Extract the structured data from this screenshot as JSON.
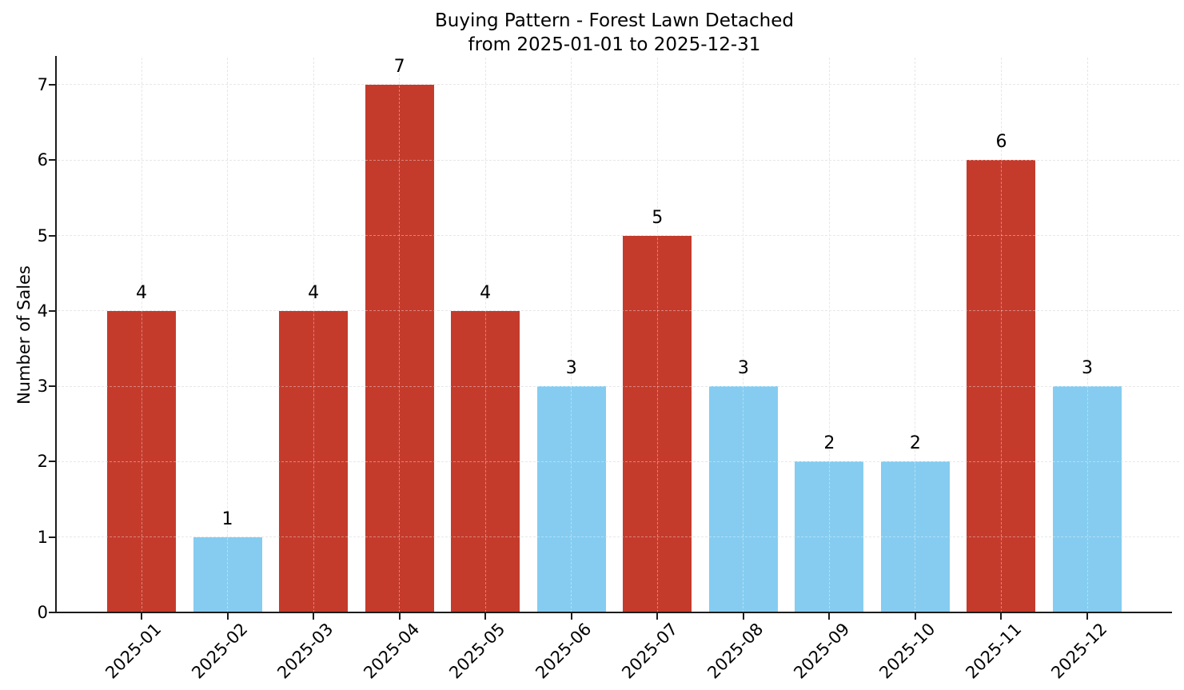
{
  "chart_data": {
    "type": "bar",
    "title": "Buying Pattern - Forest Lawn Detached",
    "subtitle": "from 2025-01-01 to 2025-12-31",
    "title_lines": [
      "Buying Pattern - Forest Lawn Detached",
      "from 2025-01-01 to 2025-12-31"
    ],
    "xlabel": "",
    "ylabel": "Number of Sales",
    "categories": [
      "2025-01",
      "2025-02",
      "2025-03",
      "2025-04",
      "2025-05",
      "2025-06",
      "2025-07",
      "2025-08",
      "2025-09",
      "2025-10",
      "2025-11",
      "2025-12"
    ],
    "values": [
      4,
      1,
      4,
      7,
      4,
      3,
      5,
      3,
      2,
      2,
      6,
      3
    ],
    "bar_colors": [
      "#c43b2c",
      "#85ccf0",
      "#c43b2c",
      "#c43b2c",
      "#c43b2c",
      "#85ccf0",
      "#c43b2c",
      "#85ccf0",
      "#85ccf0",
      "#85ccf0",
      "#c43b2c",
      "#85ccf0"
    ],
    "palette": {
      "high": "#c43b2c",
      "low": "#85ccf0"
    },
    "value_labels_shown": true,
    "yticks": [
      0,
      1,
      2,
      3,
      4,
      5,
      6,
      7
    ],
    "ylim": [
      0,
      7.36
    ],
    "grid": true,
    "grid_style": "dashed",
    "grid_color": "#d9d9d9",
    "axis_color": "#1c1c1c",
    "text_color": "#000000",
    "legend_position": "none",
    "xtick_rotation": 45
  }
}
